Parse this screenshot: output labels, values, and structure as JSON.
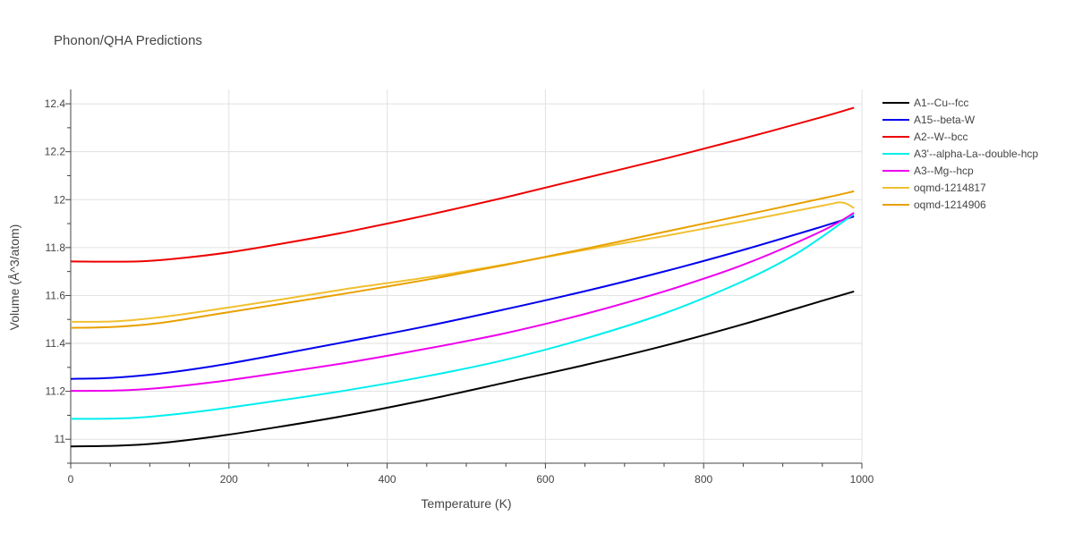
{
  "chart_data": {
    "type": "line",
    "title": "Phonon/QHA Predictions",
    "xlabel": "Temperature (K)",
    "ylabel": "Volume (Å^3/atom)",
    "xlim": [
      0,
      1000
    ],
    "ylim": [
      10.9,
      12.46
    ],
    "xticks": [
      0,
      200,
      400,
      600,
      800,
      1000
    ],
    "yticks": [
      11,
      11.2,
      11.4,
      11.6,
      11.8,
      12,
      12.2,
      12.4
    ],
    "xtick_labels": [
      "0",
      "200",
      "400",
      "600",
      "800",
      "1000"
    ],
    "ytick_labels": [
      "11",
      "11.2",
      "11.4",
      "11.6",
      "11.8",
      "12",
      "12.2",
      "12.4"
    ],
    "grid": true,
    "legend_position": "right",
    "series": [
      {
        "name": "A1--Cu--fcc",
        "color": "#000000",
        "x": [
          0,
          60,
          110,
          180,
          260,
          350,
          450,
          550,
          650,
          750,
          850,
          950,
          990
        ],
        "y": [
          10.97,
          10.973,
          10.983,
          11.01,
          11.05,
          11.1,
          11.165,
          11.237,
          11.31,
          11.39,
          11.48,
          11.578,
          11.617
        ]
      },
      {
        "name": "A15--beta-W",
        "color": "#0000ee",
        "x": [
          0,
          50,
          110,
          180,
          260,
          350,
          450,
          550,
          650,
          750,
          850,
          950,
          990
        ],
        "y": [
          11.252,
          11.256,
          11.273,
          11.305,
          11.352,
          11.408,
          11.472,
          11.543,
          11.618,
          11.7,
          11.79,
          11.888,
          11.93
        ]
      },
      {
        "name": "A2--W--bcc",
        "color": "#ee0000",
        "x": [
          0,
          85,
          140,
          200,
          270,
          350,
          450,
          550,
          650,
          750,
          850,
          950,
          990
        ],
        "y": [
          11.742,
          11.742,
          11.756,
          11.78,
          11.818,
          11.866,
          11.935,
          12.01,
          12.09,
          12.17,
          12.255,
          12.345,
          12.384
        ]
      },
      {
        "name": "A3'--alpha-La--double-hcp",
        "color": "#00eeee",
        "x": [
          0,
          65,
          110,
          180,
          260,
          350,
          450,
          550,
          650,
          750,
          850,
          920,
          990
        ],
        "y": [
          11.085,
          11.087,
          11.097,
          11.123,
          11.16,
          11.205,
          11.263,
          11.332,
          11.42,
          11.525,
          11.66,
          11.78,
          11.94
        ]
      },
      {
        "name": "A3--Mg--hcp",
        "color": "#ee00ee",
        "x": [
          0,
          55,
          110,
          180,
          260,
          350,
          450,
          550,
          650,
          750,
          850,
          950,
          990
        ],
        "y": [
          11.202,
          11.203,
          11.213,
          11.238,
          11.275,
          11.32,
          11.378,
          11.443,
          11.523,
          11.617,
          11.728,
          11.87,
          11.945
        ]
      },
      {
        "name": "oqmd-1214817",
        "color": "#f0c030",
        "x": [
          0,
          55,
          110,
          180,
          260,
          350,
          450,
          550,
          650,
          750,
          850,
          950,
          975,
          990
        ],
        "y": [
          11.49,
          11.492,
          11.508,
          11.54,
          11.58,
          11.628,
          11.675,
          11.73,
          11.79,
          11.848,
          11.91,
          11.975,
          11.988,
          11.965
        ]
      },
      {
        "name": "oqmd-1214906",
        "color": "#e8a000",
        "x": [
          0,
          50,
          110,
          180,
          260,
          350,
          450,
          550,
          650,
          750,
          850,
          950,
          990
        ],
        "y": [
          11.465,
          11.468,
          11.484,
          11.52,
          11.562,
          11.61,
          11.666,
          11.728,
          11.795,
          11.865,
          11.935,
          12.005,
          12.035
        ]
      }
    ]
  }
}
